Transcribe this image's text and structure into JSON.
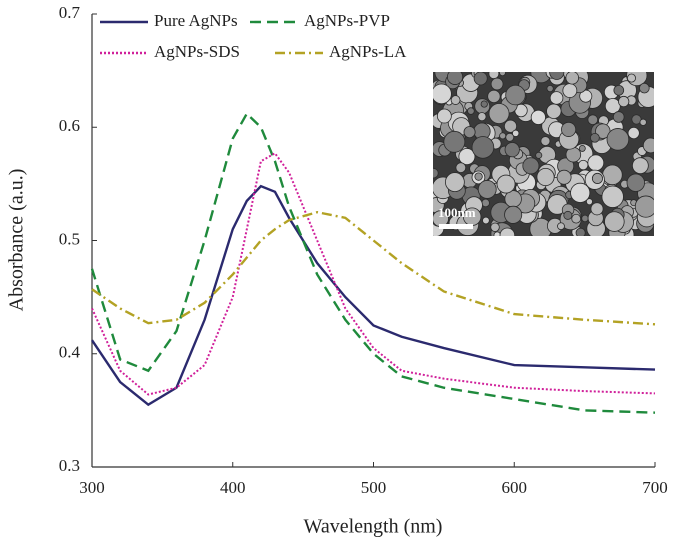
{
  "chart_data": {
    "type": "line",
    "x_label": "Wavelength (nm)",
    "y_label": "Absorbance (a.u.)",
    "x": [
      300,
      320,
      340,
      360,
      380,
      400,
      410,
      420,
      430,
      440,
      460,
      480,
      500,
      520,
      550,
      600,
      650,
      700
    ],
    "series": [
      {
        "name": "Pure AgNPs",
        "color": "#2b2a6e",
        "dash": "solid",
        "values": [
          0.412,
          0.375,
          0.355,
          0.37,
          0.43,
          0.51,
          0.535,
          0.548,
          0.543,
          0.52,
          0.48,
          0.45,
          0.425,
          0.415,
          0.405,
          0.39,
          0.388,
          0.386
        ]
      },
      {
        "name": "AgNPs-PVP",
        "color": "#1f8a3c",
        "dash": "dashed",
        "values": [
          0.475,
          0.395,
          0.385,
          0.42,
          0.5,
          0.59,
          0.612,
          0.6,
          0.57,
          0.53,
          0.47,
          0.43,
          0.4,
          0.38,
          0.37,
          0.36,
          0.35,
          0.348
        ]
      },
      {
        "name": "AgNPs-SDS",
        "color": "#d0209a",
        "dash": "dotted",
        "values": [
          0.44,
          0.385,
          0.364,
          0.37,
          0.39,
          0.45,
          0.51,
          0.57,
          0.577,
          0.56,
          0.5,
          0.44,
          0.405,
          0.385,
          0.378,
          0.37,
          0.367,
          0.365
        ]
      },
      {
        "name": "AgNPs-LA",
        "color": "#b3a224",
        "dash": "dashdot",
        "values": [
          0.457,
          0.44,
          0.427,
          0.43,
          0.445,
          0.47,
          0.485,
          0.5,
          0.51,
          0.518,
          0.525,
          0.52,
          0.5,
          0.48,
          0.455,
          0.435,
          0.43,
          0.426
        ]
      }
    ],
    "xlim": [
      300,
      700
    ],
    "xticks": [
      300,
      400,
      500,
      600,
      700
    ],
    "ylim": [
      0.3,
      0.7
    ],
    "yticks": [
      0.3,
      0.4,
      0.5,
      0.6,
      0.7
    ],
    "inset_scale_label": "100nm"
  }
}
